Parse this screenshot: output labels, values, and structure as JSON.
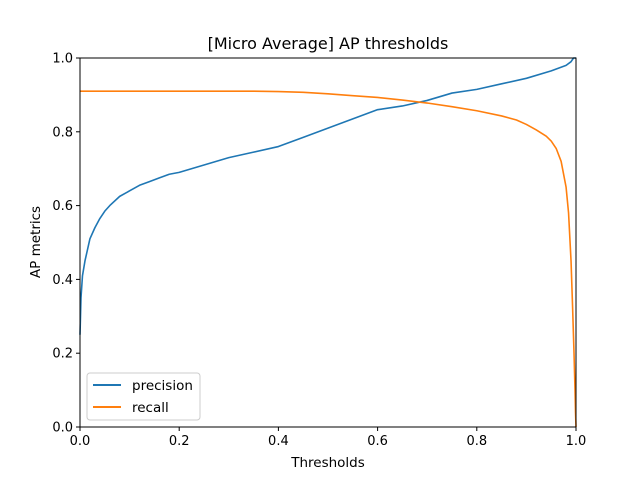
{
  "chart_data": {
    "type": "line",
    "title": "[Micro Average] AP thresholds",
    "xlabel": "Thresholds",
    "ylabel": "AP metrics",
    "xlim": [
      0.0,
      1.0
    ],
    "ylim": [
      0.0,
      1.0
    ],
    "xticks": [
      "0.0",
      "0.2",
      "0.4",
      "0.6",
      "0.8",
      "1.0"
    ],
    "yticks": [
      "0.0",
      "0.2",
      "0.4",
      "0.6",
      "0.8",
      "1.0"
    ],
    "grid": false,
    "legend_position": "lower-left",
    "series": [
      {
        "name": "precision",
        "color": "#1f77b4",
        "x": [
          0.0,
          0.002,
          0.005,
          0.01,
          0.015,
          0.02,
          0.03,
          0.04,
          0.05,
          0.06,
          0.08,
          0.1,
          0.12,
          0.14,
          0.16,
          0.18,
          0.2,
          0.25,
          0.3,
          0.35,
          0.4,
          0.45,
          0.5,
          0.55,
          0.6,
          0.65,
          0.7,
          0.75,
          0.8,
          0.85,
          0.9,
          0.95,
          0.98,
          0.99,
          0.995,
          1.0
        ],
        "y": [
          0.25,
          0.35,
          0.41,
          0.45,
          0.48,
          0.51,
          0.54,
          0.565,
          0.585,
          0.6,
          0.625,
          0.64,
          0.655,
          0.665,
          0.675,
          0.685,
          0.69,
          0.71,
          0.73,
          0.745,
          0.76,
          0.785,
          0.81,
          0.835,
          0.86,
          0.87,
          0.885,
          0.905,
          0.915,
          0.93,
          0.945,
          0.965,
          0.98,
          0.99,
          1.0,
          1.0
        ]
      },
      {
        "name": "recall",
        "color": "#ff7f0e",
        "x": [
          0.0,
          0.1,
          0.2,
          0.3,
          0.35,
          0.4,
          0.45,
          0.5,
          0.55,
          0.6,
          0.65,
          0.7,
          0.75,
          0.8,
          0.85,
          0.88,
          0.9,
          0.92,
          0.94,
          0.95,
          0.96,
          0.97,
          0.98,
          0.985,
          0.99,
          0.993,
          0.996,
          0.998,
          0.999,
          1.0
        ],
        "y": [
          0.91,
          0.91,
          0.91,
          0.91,
          0.91,
          0.909,
          0.907,
          0.903,
          0.898,
          0.893,
          0.886,
          0.878,
          0.868,
          0.857,
          0.843,
          0.832,
          0.82,
          0.805,
          0.788,
          0.775,
          0.755,
          0.72,
          0.65,
          0.58,
          0.45,
          0.33,
          0.2,
          0.1,
          0.04,
          0.0
        ]
      }
    ]
  }
}
